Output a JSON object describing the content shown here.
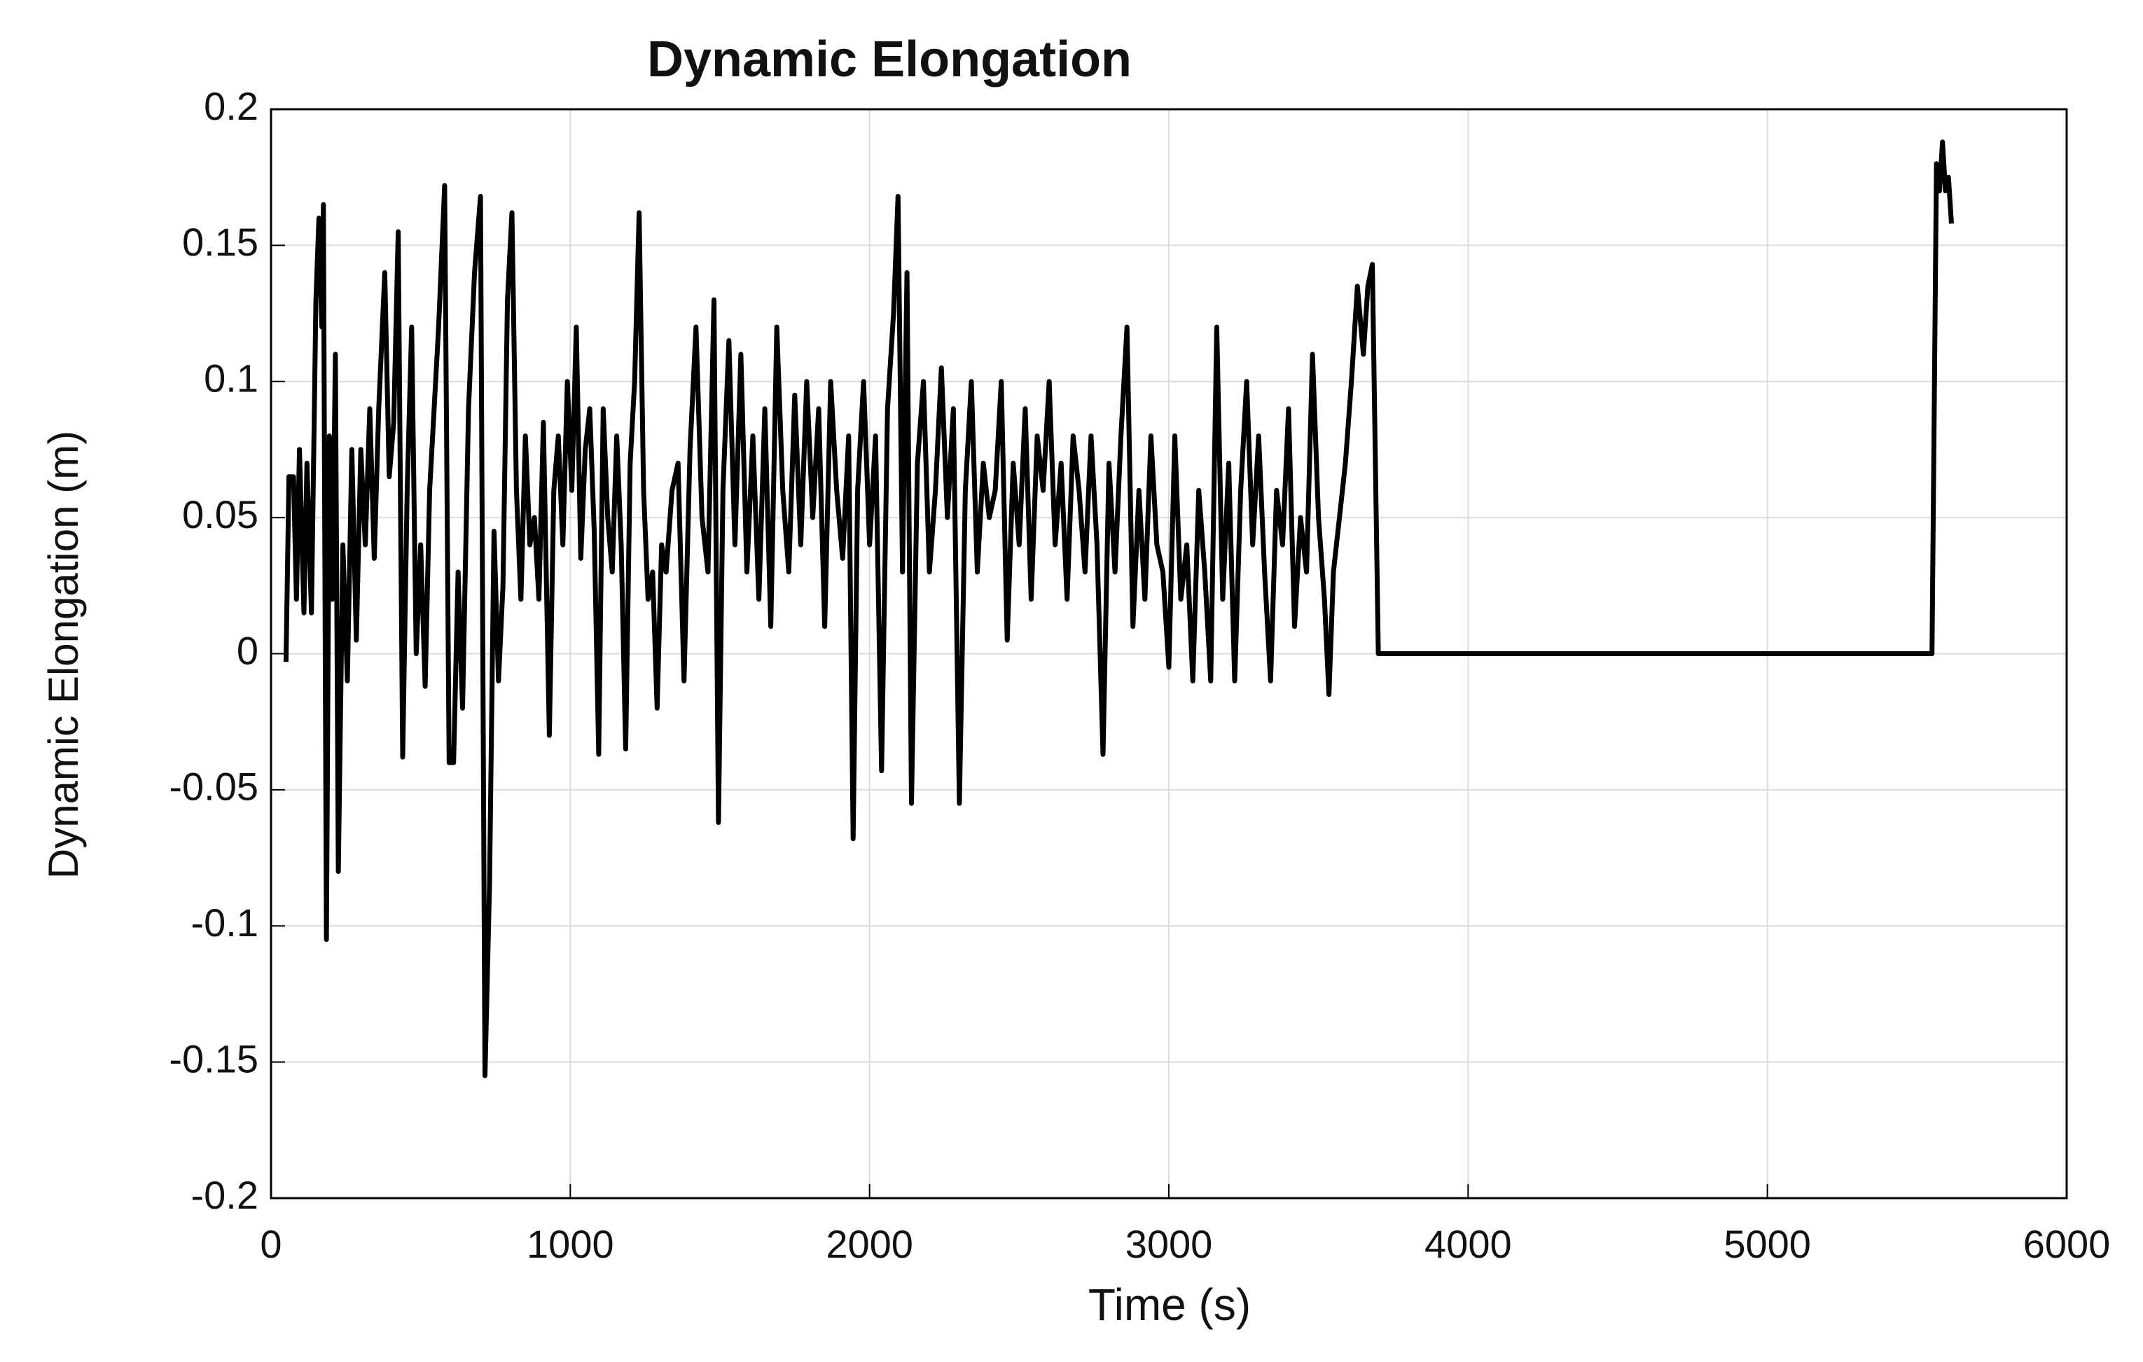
{
  "chart_data": {
    "type": "line",
    "title": "Dynamic Elongation",
    "xlabel": "Time (s)",
    "ylabel": "Dynamic Elongation (m)",
    "color": "#000000",
    "grid": true,
    "xlim": [
      0,
      6000
    ],
    "xticks": [
      0,
      1000,
      2000,
      3000,
      4000,
      5000,
      6000
    ],
    "ylim": [
      -0.2,
      0.2
    ],
    "yticks": [
      -0.2,
      -0.15,
      -0.1,
      -0.05,
      0,
      0.05,
      0.1,
      0.15,
      0.2
    ],
    "x": [
      50,
      60,
      75,
      85,
      95,
      110,
      120,
      135,
      150,
      160,
      170,
      175,
      185,
      195,
      205,
      215,
      225,
      240,
      255,
      270,
      285,
      300,
      315,
      330,
      345,
      360,
      380,
      395,
      410,
      425,
      440,
      455,
      470,
      485,
      500,
      515,
      530,
      545,
      560,
      580,
      595,
      610,
      625,
      640,
      660,
      680,
      700,
      715,
      730,
      745,
      760,
      775,
      790,
      805,
      820,
      835,
      850,
      865,
      880,
      895,
      910,
      930,
      945,
      960,
      975,
      990,
      1005,
      1020,
      1035,
      1050,
      1065,
      1080,
      1095,
      1110,
      1125,
      1140,
      1155,
      1170,
      1185,
      1200,
      1215,
      1230,
      1245,
      1260,
      1275,
      1290,
      1305,
      1320,
      1340,
      1360,
      1380,
      1400,
      1420,
      1440,
      1460,
      1480,
      1495,
      1510,
      1530,
      1550,
      1570,
      1590,
      1610,
      1630,
      1650,
      1670,
      1690,
      1710,
      1730,
      1750,
      1770,
      1790,
      1810,
      1830,
      1850,
      1870,
      1890,
      1910,
      1930,
      1945,
      1960,
      1980,
      2000,
      2020,
      2040,
      2060,
      2080,
      2095,
      2110,
      2125,
      2140,
      2160,
      2180,
      2200,
      2220,
      2240,
      2260,
      2280,
      2300,
      2320,
      2340,
      2360,
      2380,
      2400,
      2420,
      2440,
      2460,
      2480,
      2500,
      2520,
      2540,
      2560,
      2580,
      2600,
      2620,
      2640,
      2660,
      2680,
      2700,
      2720,
      2740,
      2760,
      2780,
      2800,
      2820,
      2840,
      2860,
      2880,
      2900,
      2920,
      2940,
      2960,
      2980,
      3000,
      3020,
      3040,
      3060,
      3080,
      3100,
      3120,
      3140,
      3160,
      3180,
      3200,
      3220,
      3240,
      3260,
      3280,
      3300,
      3320,
      3340,
      3360,
      3380,
      3400,
      3420,
      3440,
      3460,
      3480,
      3500,
      3520,
      3535,
      3550,
      3570,
      3590,
      3610,
      3630,
      3650,
      3665,
      3680,
      3700,
      5550,
      5565,
      5575,
      5585,
      5595,
      5605,
      5615
    ],
    "values": [
      -0.003,
      0.065,
      0.065,
      0.02,
      0.075,
      0.015,
      0.07,
      0.015,
      0.13,
      0.16,
      0.12,
      0.165,
      -0.105,
      0.08,
      0.02,
      0.11,
      -0.08,
      0.04,
      -0.01,
      0.075,
      0.005,
      0.075,
      0.04,
      0.09,
      0.035,
      0.09,
      0.14,
      0.065,
      0.085,
      0.155,
      -0.038,
      0.06,
      0.12,
      0.0,
      0.04,
      -0.012,
      0.06,
      0.09,
      0.12,
      0.172,
      -0.04,
      -0.04,
      0.03,
      -0.02,
      0.09,
      0.14,
      0.168,
      -0.155,
      -0.085,
      0.045,
      -0.01,
      0.025,
      0.13,
      0.162,
      0.06,
      0.02,
      0.08,
      0.04,
      0.05,
      0.02,
      0.085,
      -0.03,
      0.06,
      0.08,
      0.04,
      0.1,
      0.06,
      0.12,
      0.035,
      0.075,
      0.09,
      0.045,
      -0.037,
      0.09,
      0.05,
      0.03,
      0.08,
      0.04,
      -0.035,
      0.07,
      0.1,
      0.162,
      0.06,
      0.02,
      0.03,
      -0.02,
      0.04,
      0.03,
      0.06,
      0.07,
      -0.01,
      0.075,
      0.12,
      0.05,
      0.03,
      0.13,
      -0.062,
      0.06,
      0.115,
      0.04,
      0.11,
      0.03,
      0.08,
      0.02,
      0.09,
      0.01,
      0.12,
      0.06,
      0.03,
      0.095,
      0.04,
      0.1,
      0.05,
      0.09,
      0.01,
      0.1,
      0.06,
      0.035,
      0.08,
      -0.068,
      0.06,
      0.1,
      0.04,
      0.08,
      -0.043,
      0.09,
      0.125,
      0.168,
      0.03,
      0.14,
      -0.055,
      0.07,
      0.1,
      0.03,
      0.06,
      0.105,
      0.05,
      0.09,
      -0.055,
      0.06,
      0.1,
      0.03,
      0.07,
      0.05,
      0.06,
      0.1,
      0.005,
      0.07,
      0.04,
      0.09,
      0.02,
      0.08,
      0.06,
      0.1,
      0.04,
      0.07,
      0.02,
      0.08,
      0.06,
      0.03,
      0.08,
      0.04,
      -0.037,
      0.07,
      0.03,
      0.08,
      0.12,
      0.01,
      0.06,
      0.02,
      0.08,
      0.04,
      0.03,
      -0.005,
      0.08,
      0.02,
      0.04,
      -0.01,
      0.06,
      0.03,
      -0.01,
      0.12,
      0.02,
      0.07,
      -0.01,
      0.06,
      0.1,
      0.04,
      0.08,
      0.03,
      -0.01,
      0.06,
      0.04,
      0.09,
      0.01,
      0.05,
      0.03,
      0.11,
      0.05,
      0.02,
      -0.015,
      0.03,
      0.05,
      0.07,
      0.1,
      0.135,
      0.11,
      0.135,
      0.143,
      0.0,
      0.0,
      0.18,
      0.17,
      0.188,
      0.17,
      0.175,
      0.158
    ]
  }
}
